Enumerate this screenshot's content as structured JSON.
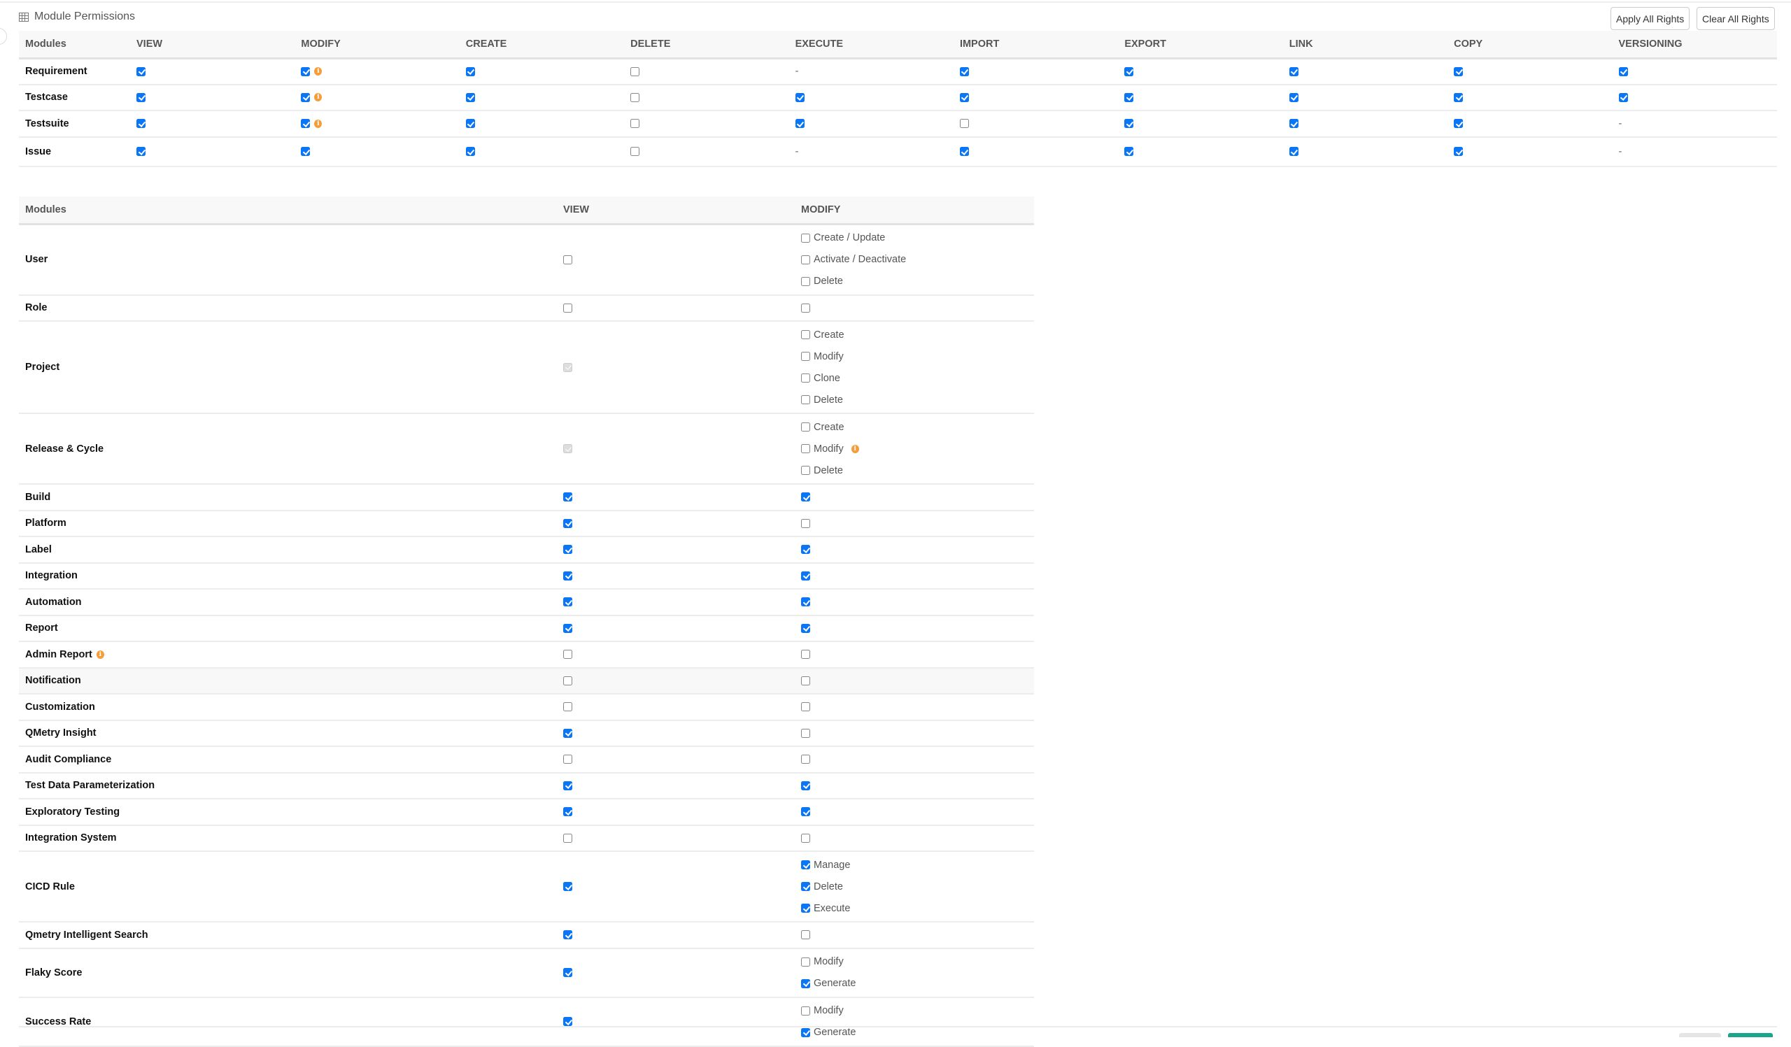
{
  "title": "Module Permissions",
  "icons": {
    "title": "table-grid-icon",
    "info": "info-icon"
  },
  "colors": {
    "accent": "#0a76f6",
    "info": "#f59d3a",
    "primary_button": "#1aa58a"
  },
  "actions": {
    "apply_all": "Apply All Rights",
    "clear_all": "Clear All Rights"
  },
  "table1": {
    "headers": [
      "Modules",
      "VIEW",
      "MODIFY",
      "CREATE",
      "DELETE",
      "EXECUTE",
      "IMPORT",
      "EXPORT",
      "LINK",
      "COPY",
      "VERSIONING"
    ],
    "rows": [
      {
        "name": "Requirement",
        "cells": [
          true,
          {
            "v": true,
            "info": true
          },
          true,
          false,
          "-",
          true,
          true,
          true,
          true,
          true
        ]
      },
      {
        "name": "Testcase",
        "cells": [
          true,
          {
            "v": true,
            "info": true
          },
          true,
          false,
          true,
          true,
          true,
          true,
          true,
          true
        ]
      },
      {
        "name": "Testsuite",
        "cells": [
          true,
          {
            "v": true,
            "info": true
          },
          true,
          false,
          true,
          false,
          true,
          true,
          true,
          "-"
        ]
      },
      {
        "name": "Issue",
        "cells": [
          true,
          true,
          true,
          false,
          "-",
          true,
          true,
          true,
          true,
          "-"
        ]
      }
    ]
  },
  "table2": {
    "headers": [
      "Modules",
      "VIEW",
      "MODIFY"
    ],
    "rows": [
      {
        "name": "User",
        "view": false,
        "modify": [
          {
            "label": "Create / Update",
            "checked": false
          },
          {
            "label": "Activate / Deactivate",
            "checked": false
          },
          {
            "label": "Delete",
            "checked": false
          }
        ]
      },
      {
        "name": "Role",
        "view": false,
        "modify": false
      },
      {
        "name": "Project",
        "view": "disabled-checked",
        "modify": [
          {
            "label": "Create",
            "checked": false
          },
          {
            "label": "Modify",
            "checked": false
          },
          {
            "label": "Clone",
            "checked": false
          },
          {
            "label": "Delete",
            "checked": false
          }
        ]
      },
      {
        "name": "Release & Cycle",
        "view": "disabled-checked",
        "modify": [
          {
            "label": "Create",
            "checked": false
          },
          {
            "label": "Modify",
            "checked": false,
            "info": true
          },
          {
            "label": "Delete",
            "checked": false
          }
        ]
      },
      {
        "name": "Build",
        "view": true,
        "modify": true
      },
      {
        "name": "Platform",
        "view": true,
        "modify": false
      },
      {
        "name": "Label",
        "view": true,
        "modify": true
      },
      {
        "name": "Integration",
        "view": true,
        "modify": true
      },
      {
        "name": "Automation",
        "view": true,
        "modify": true
      },
      {
        "name": "Report",
        "view": true,
        "modify": true
      },
      {
        "name": "Admin Report",
        "info": true,
        "view": false,
        "modify": false
      },
      {
        "name": "Notification",
        "view": false,
        "modify": false,
        "highlighted": true
      },
      {
        "name": "Customization",
        "view": false,
        "modify": false
      },
      {
        "name": "QMetry Insight",
        "view": true,
        "modify": false
      },
      {
        "name": "Audit Compliance",
        "view": false,
        "modify": false
      },
      {
        "name": "Test Data Parameterization",
        "view": true,
        "modify": true
      },
      {
        "name": "Exploratory Testing",
        "view": true,
        "modify": true
      },
      {
        "name": "Integration System",
        "view": false,
        "modify": false
      },
      {
        "name": "CICD Rule",
        "view": true,
        "modify": [
          {
            "label": "Manage",
            "checked": true
          },
          {
            "label": "Delete",
            "checked": true
          },
          {
            "label": "Execute",
            "checked": true
          }
        ]
      },
      {
        "name": "Qmetry Intelligent Search",
        "view": true,
        "modify": false
      },
      {
        "name": "Flaky Score",
        "view": true,
        "modify": [
          {
            "label": "Modify",
            "checked": false
          },
          {
            "label": "Generate",
            "checked": true
          }
        ]
      },
      {
        "name": "Success Rate",
        "view": true,
        "modify": [
          {
            "label": "Modify",
            "checked": false
          },
          {
            "label": "Generate",
            "checked": true
          }
        ]
      }
    ]
  }
}
